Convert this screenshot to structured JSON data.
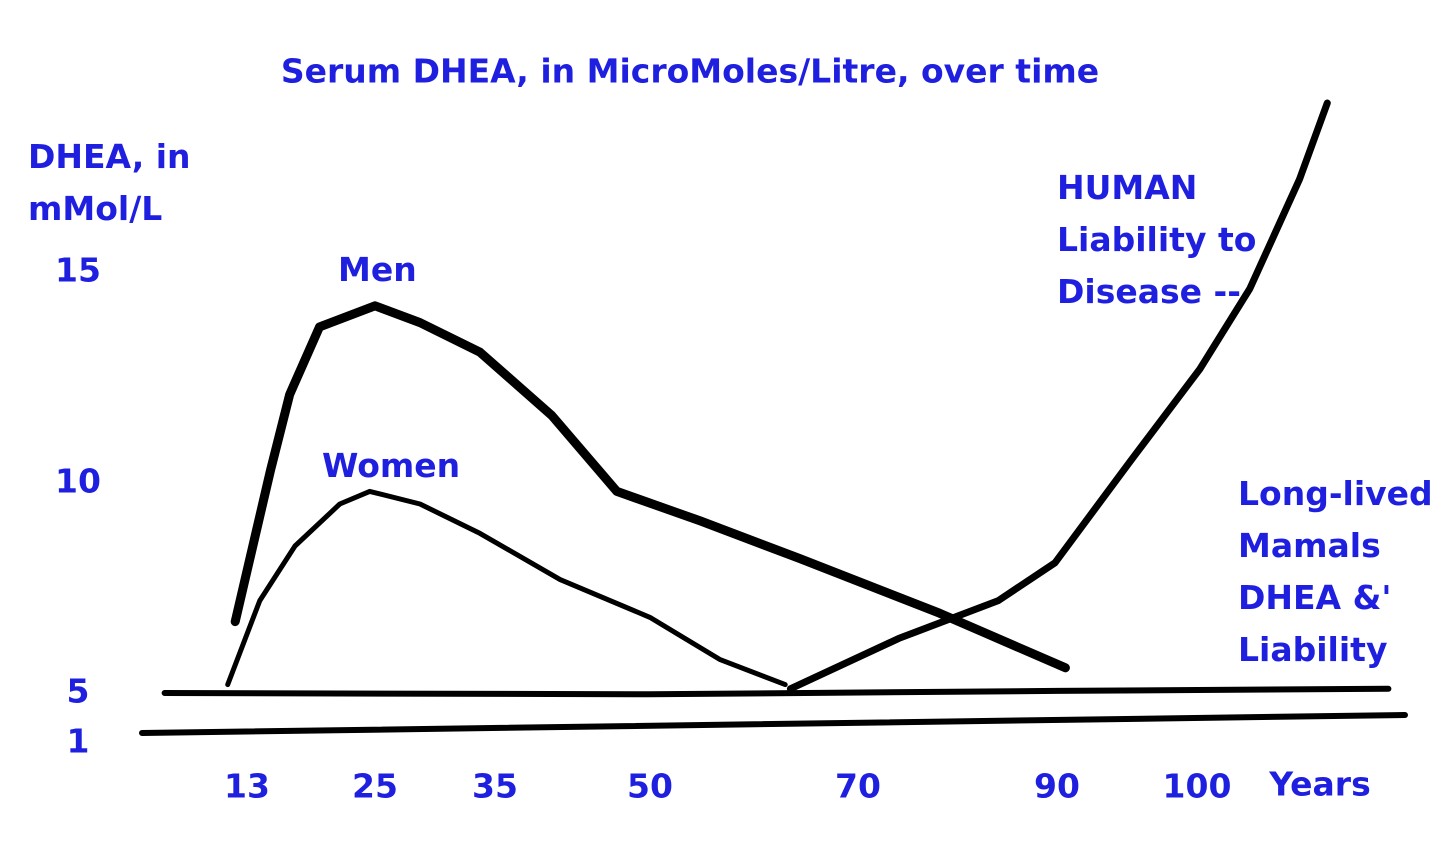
{
  "chart_data": {
    "type": "line",
    "title": "Serum DHEA, in MicroMoles/Litre, over time",
    "y_label": "DHEA, in mMol/L",
    "x_label": "Years",
    "xlim": [
      3,
      115
    ],
    "xticks": [
      13,
      25,
      35,
      50,
      70,
      90,
      100
    ],
    "ylim": [
      1,
      19
    ],
    "yticks": [
      1,
      5,
      10,
      15
    ],
    "grid": false,
    "series": [
      {
        "name": "Men",
        "color": "#000000",
        "x": [
          11.9,
          15.2,
          17,
          19.8,
          25,
          28.75,
          33.75,
          40.5,
          46.8,
          54.8,
          64.4,
          78.2,
          90.6
        ],
        "values": [
          6.7,
          10.3,
          12.1,
          13.7,
          14.2,
          13.8,
          13.1,
          11.6,
          9.8,
          9.1,
          8.2,
          6.9,
          5.6
        ]
      },
      {
        "name": "Women",
        "color": "#000000",
        "x": [
          11.2,
          14.2,
          17.5,
          21.7,
          24.5,
          28.75,
          33.75,
          41.3,
          50,
          56.7,
          63
        ],
        "values": [
          5.2,
          7.2,
          8.5,
          9.5,
          9.8,
          9.5,
          8.8,
          7.7,
          6.8,
          5.8,
          5.2
        ]
      },
      {
        "name": "HUMAN Liability to Disease --",
        "color": "#000000",
        "x": [
          63.5,
          74.1,
          84.1,
          89.8,
          95.2,
          100.2,
          103.8,
          107.4,
          109.4
        ],
        "values": [
          5.1,
          6.3,
          7.2,
          8.1,
          10.5,
          12.7,
          14.6,
          17.2,
          19
        ]
      },
      {
        "name": "Long-lived Mamals DHEA &' Liability",
        "color": "#000000",
        "x": [
          5.3,
          50,
          90,
          113.8
        ],
        "values": [
          5,
          4.9,
          5.05,
          5.1
        ]
      }
    ]
  }
}
